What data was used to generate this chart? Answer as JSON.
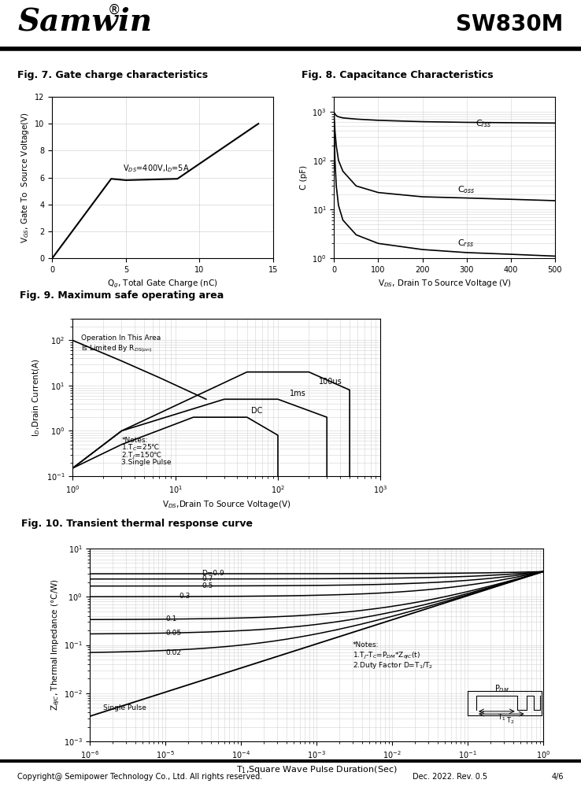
{
  "title_company": "Samwin",
  "title_part": "SW830M",
  "footer_copyright": "Copyright@ Semipower Technology Co., Ltd. All rights reserved.",
  "footer_date": "Dec. 2022. Rev. 0.5",
  "footer_page": "4/6",
  "fig7_title": "Fig. 7. Gate charge characteristics",
  "fig7_xlabel": "Q$_{g}$, Total Gate Charge (nC)",
  "fig7_ylabel": "V$_{GS}$, Gate To  Source Voltage(V)",
  "fig7_annotation": "V$_{DS}$=400V,I$_{D}$=5A",
  "fig7_xlim": [
    0,
    15
  ],
  "fig7_ylim": [
    0,
    12
  ],
  "fig7_xticks": [
    0,
    5,
    10,
    15
  ],
  "fig7_yticks": [
    0,
    2,
    4,
    6,
    8,
    10,
    12
  ],
  "fig7_x": [
    0,
    4.0,
    5.0,
    8.5,
    14.0
  ],
  "fig7_y": [
    0,
    5.9,
    5.8,
    5.9,
    10.0
  ],
  "fig8_title": "Fig. 8. Capacitance Characteristics",
  "fig8_xlabel": "V$_{DS}$, Drain To Source Voltage (V)",
  "fig8_ylabel": "C (pF)",
  "fig8_xlim": [
    0,
    500
  ],
  "fig8_xticks": [
    0,
    100,
    200,
    300,
    400,
    500
  ],
  "fig8_ciss_x": [
    0,
    2,
    5,
    10,
    20,
    50,
    100,
    200,
    300,
    400,
    500
  ],
  "fig8_ciss_y": [
    950,
    900,
    820,
    780,
    740,
    700,
    660,
    620,
    600,
    590,
    580
  ],
  "fig8_coss_x": [
    0,
    2,
    5,
    10,
    20,
    50,
    100,
    200,
    300,
    400,
    500
  ],
  "fig8_coss_y": [
    900,
    400,
    200,
    100,
    60,
    30,
    22,
    18,
    17,
    16,
    15
  ],
  "fig8_crss_x": [
    0,
    2,
    5,
    10,
    20,
    50,
    100,
    200,
    300,
    400,
    500
  ],
  "fig8_crss_y": [
    600,
    100,
    30,
    12,
    6,
    3,
    2,
    1.5,
    1.3,
    1.2,
    1.1
  ],
  "fig8_label_ciss": "C$_{iss}$",
  "fig8_label_coss": "C$_{oss}$",
  "fig8_label_crss": "C$_{rss}$",
  "fig9_title": "Fig. 9. Maximum safe operating area",
  "fig9_xlabel": "V$_{DS}$,Drain To Source Voltage(V)",
  "fig9_ylabel": "I$_{D}$,Drain Current(A)",
  "fig10_title": "Fig. 10. Transient thermal response curve",
  "fig10_xlabel": "T$_{1}$,Square Wave Pulse Duration(Sec)",
  "fig10_ylabel": "Z$_{\\theta JC}$, Thermal Impedance (°C/W)",
  "fig10_duty_labels": [
    "D=0.9",
    "0.7",
    "0.5",
    "0.3",
    "0.1",
    "0.05",
    "0.02"
  ],
  "fig10_duty_values": [
    0.9,
    0.7,
    0.5,
    0.3,
    0.1,
    0.05,
    0.02
  ]
}
